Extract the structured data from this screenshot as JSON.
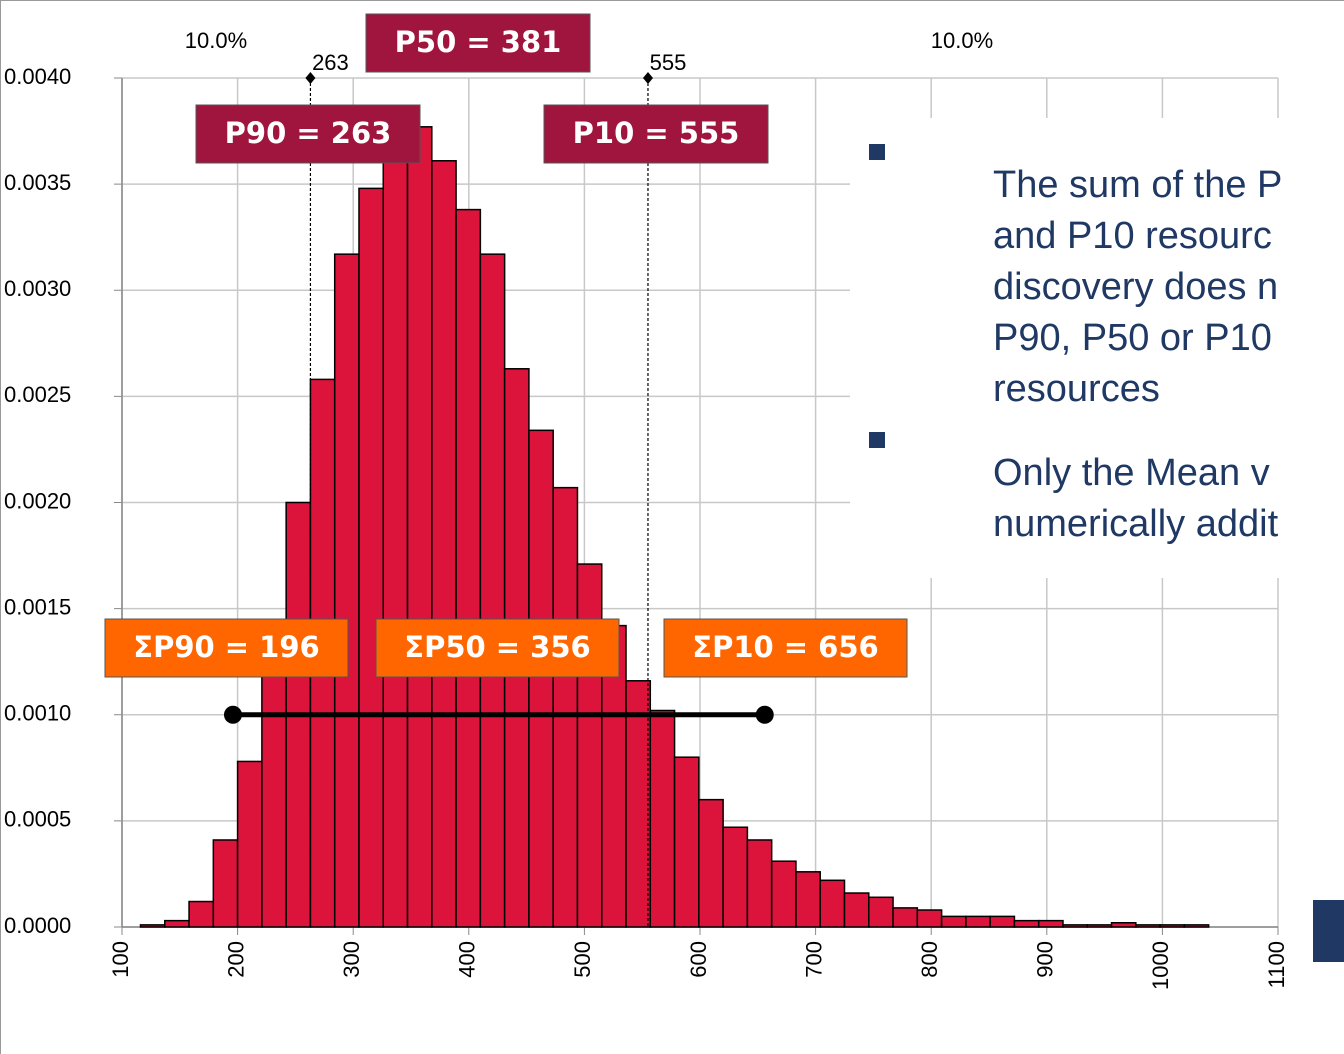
{
  "chart_data": {
    "type": "histogram",
    "color": "#dc143c",
    "bins": [
      116,
      137,
      158,
      179,
      200,
      221,
      242,
      263,
      284,
      305,
      326,
      347,
      368,
      389,
      410,
      431,
      452,
      473,
      494,
      515,
      536,
      557,
      578,
      599,
      620,
      641,
      662,
      683,
      704,
      725,
      746,
      767,
      788,
      809,
      830,
      851,
      872,
      893,
      914,
      935,
      956,
      977,
      998,
      1019,
      1040
    ],
    "values": [
      1e-05,
      3e-05,
      0.00012,
      0.00041,
      0.00078,
      0.00128,
      0.002,
      0.00258,
      0.00317,
      0.00348,
      0.0037,
      0.00377,
      0.00361,
      0.00338,
      0.00317,
      0.00263,
      0.00234,
      0.00207,
      0.00171,
      0.00142,
      0.00116,
      0.00102,
      0.0008,
      0.0006,
      0.00047,
      0.00041,
      0.00031,
      0.00026,
      0.00022,
      0.00016,
      0.00014,
      9e-05,
      8e-05,
      5e-05,
      5e-05,
      5e-05,
      3e-05,
      3e-05,
      1e-05,
      1e-05,
      2e-05,
      1e-05,
      1e-05,
      1e-05
    ],
    "xlim": [
      100,
      1100
    ],
    "xticks": [
      100,
      200,
      300,
      400,
      500,
      600,
      700,
      800,
      900,
      1000,
      1100
    ],
    "ylim": [
      0,
      0.004
    ],
    "yticks": [
      {
        "value": 0,
        "label": "0.0000"
      },
      {
        "value": 0.0005,
        "label": "0.0005"
      },
      {
        "value": 0.001,
        "label": "0.0010"
      },
      {
        "value": 0.0015,
        "label": "0.0015"
      },
      {
        "value": 0.002,
        "label": "0.0020"
      },
      {
        "value": 0.0025,
        "label": "0.0025"
      },
      {
        "value": 0.003,
        "label": "0.0030"
      },
      {
        "value": 0.0035,
        "label": "0.0035"
      },
      {
        "value": 0.004,
        "label": "0.0040"
      }
    ],
    "grid": true,
    "tail_labels": [
      "10.0%",
      "10.0%"
    ],
    "percentile_lines": [
      263,
      555
    ],
    "percentile_boxes": [
      "P90 = 263",
      "P50 = 381",
      "P10 = 555"
    ],
    "sum_boxes": [
      "ΣP90 = 196",
      "ΣP50 = 356",
      "ΣP10 = 656"
    ],
    "sum_range": {
      "from": 196,
      "to": 656,
      "level": 0.001
    },
    "bullets": [
      [
        "The sum of the P",
        "and P10 resourc",
        "discovery does n",
        "P90, P50 or P10",
        "resources"
      ],
      [
        "Only the Mean v",
        "numerically addit"
      ]
    ]
  }
}
